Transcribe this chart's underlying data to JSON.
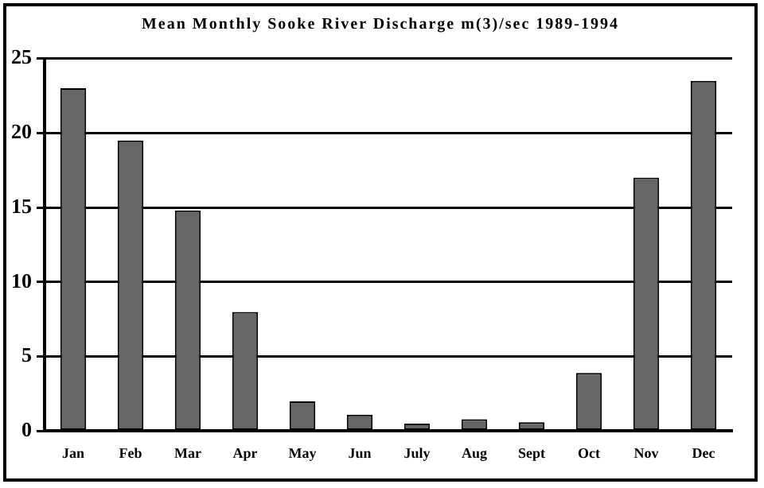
{
  "chart_data": {
    "type": "bar",
    "title": "Mean Monthly Sooke River Discharge m(3)/sec 1989-1994",
    "categories": [
      "Jan",
      "Feb",
      "Mar",
      "Apr",
      "May",
      "Jun",
      "July",
      "Aug",
      "Sept",
      "Oct",
      "Nov",
      "Dec"
    ],
    "values": [
      23,
      19.5,
      14.8,
      8,
      2,
      1.1,
      0.5,
      0.8,
      0.6,
      3.9,
      17,
      23.5
    ],
    "color": "#666666",
    "ylim": [
      0,
      25
    ],
    "yticks": [
      0,
      5,
      10,
      15,
      20,
      25
    ],
    "grid": "y"
  }
}
